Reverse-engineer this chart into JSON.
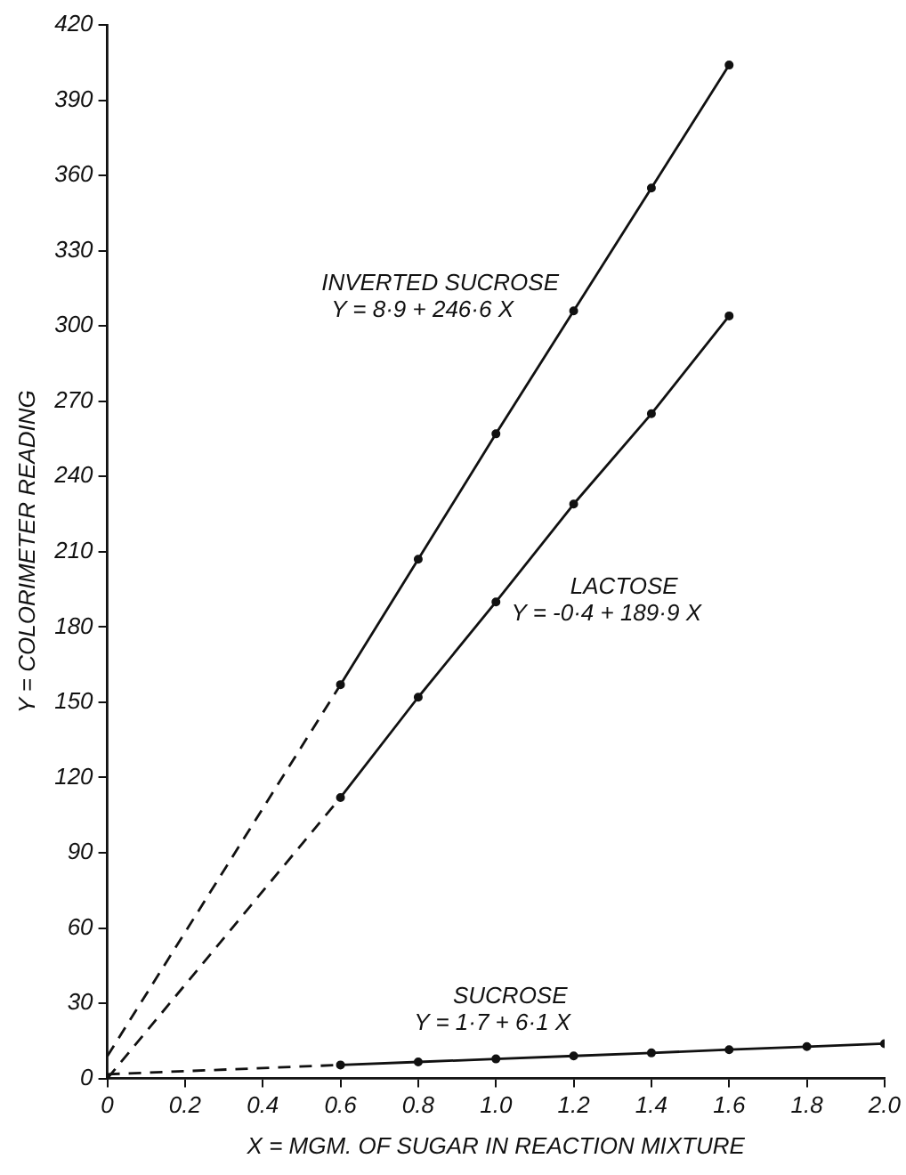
{
  "chart_data": {
    "type": "line",
    "xlabel": "X = MGM. OF SUGAR IN REACTION MIXTURE",
    "ylabel": "Y = COLORIMETER READING",
    "xlim": [
      0,
      2.0
    ],
    "xticks": [
      0,
      0.2,
      0.4,
      0.6,
      0.8,
      {
        "value": 1,
        "label": "1.0"
      },
      1.2,
      1.4,
      1.6,
      1.8,
      {
        "value": 2,
        "label": "2.0"
      }
    ],
    "ylim": [
      0,
      420
    ],
    "yticks": [
      0,
      30,
      60,
      90,
      120,
      150,
      180,
      210,
      240,
      270,
      300,
      330,
      360,
      390,
      420
    ],
    "grid": false,
    "legend": false,
    "marker": "circle",
    "line_style": "solid",
    "series": [
      {
        "name": "INVERTED SUCROSE",
        "color": "#111111",
        "x": [
          0.6,
          0.8,
          1.0,
          1.2,
          1.4,
          1.6
        ],
        "values": [
          157,
          207,
          257,
          306,
          355,
          404
        ]
      },
      {
        "name": "LACTOSE",
        "color": "#111111",
        "x": [
          0.6,
          0.8,
          1.0,
          1.2,
          1.4,
          1.6
        ],
        "values": [
          112,
          152,
          190,
          229,
          265,
          304
        ]
      },
      {
        "name": "SUCROSE",
        "color": "#111111",
        "x": [
          0.6,
          0.8,
          1.0,
          1.2,
          1.4,
          1.6,
          1.8,
          2.0
        ],
        "values": [
          5.4,
          6.6,
          7.8,
          9.0,
          10.2,
          11.5,
          12.7,
          13.9
        ]
      },
      {
        "color": "#111111",
        "line_style": "dashed",
        "marker": "none",
        "x": [
          0,
          0.6
        ],
        "values": [
          8.9,
          157
        ]
      },
      {
        "color": "#111111",
        "line_style": "dashed",
        "marker": "none",
        "x": [
          0,
          0.6
        ],
        "values": [
          0,
          112
        ]
      },
      {
        "color": "#111111",
        "line_style": "dashed",
        "marker": "none",
        "x": [
          0,
          0.6
        ],
        "values": [
          1.7,
          5.4
        ]
      }
    ],
    "annotations": [
      "Y = 8·9 + 246·6 X",
      "Y = -0·4 + 189·9 X",
      "Y = 1·7 + 6·1 X"
    ]
  }
}
